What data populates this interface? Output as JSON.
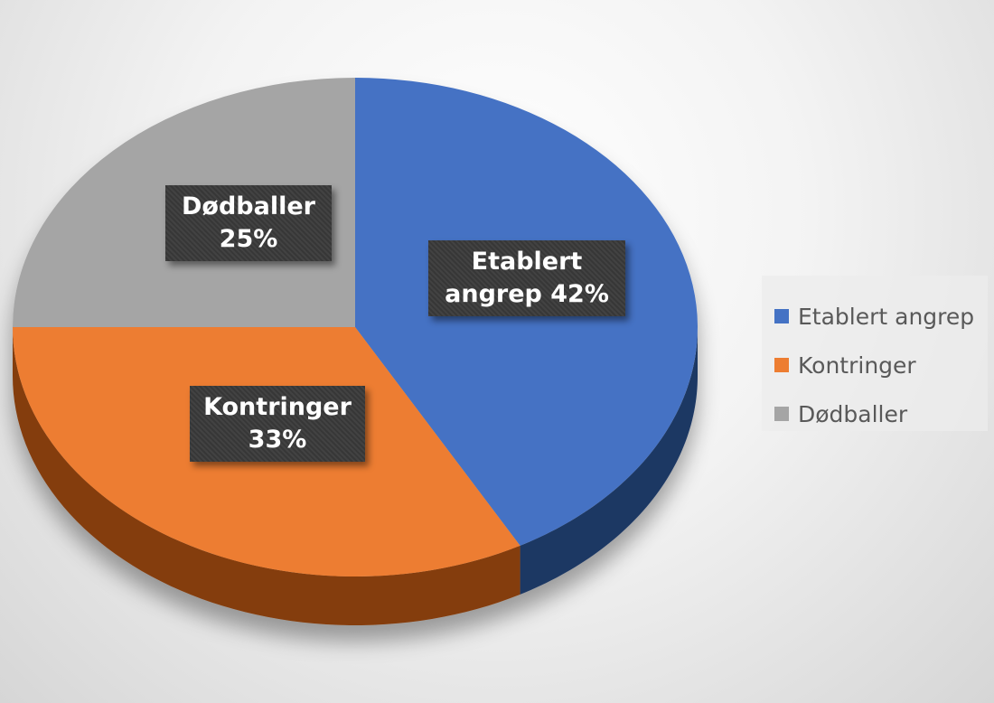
{
  "chart_data": {
    "type": "pie",
    "categories": [
      "Etablert angrep",
      "Kontringer",
      "Dødballer"
    ],
    "values": [
      42,
      33,
      25
    ],
    "unit": "%",
    "colors": [
      "#4472C4",
      "#ED7D31",
      "#A5A5A5"
    ],
    "side_colors": [
      "#1F3864",
      "#843C0C",
      "#7F7F7F"
    ],
    "data_labels": [
      {
        "line1": "Etablert",
        "line2": "angrep 42%"
      },
      {
        "line1": "Kontringer",
        "line2": "33%"
      },
      {
        "line1": "Dødballer",
        "line2": "25%"
      }
    ],
    "legend_position": "right",
    "start_angle": "12 o'clock",
    "direction": "clockwise",
    "style": "3D tilted pie"
  }
}
